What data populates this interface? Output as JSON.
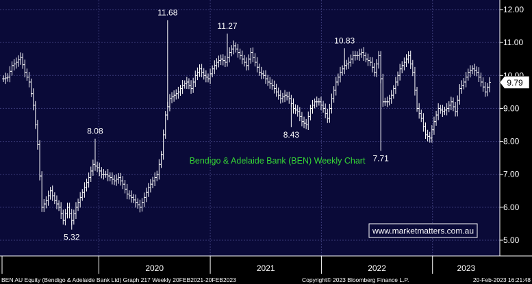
{
  "chart_data": {
    "type": "line",
    "title": "Bendigo & Adelaide Bank (BEN) Weekly Chart",
    "watermark": "www.marketmatters.com.au",
    "ylim": [
      4.7,
      12.3
    ],
    "y_ticks": [
      "5.00",
      "6.00",
      "7.00",
      "8.00",
      "9.00",
      "10.00",
      "11.00",
      "12.00"
    ],
    "x_ticks": [
      "2020",
      "2021",
      "2022",
      "2023"
    ],
    "last_price": "9.79",
    "annotations": [
      {
        "label": "11.68",
        "date": "2020-08-14",
        "value": 11.68
      },
      {
        "label": "11.27",
        "date": "2021-02-26",
        "value": 11.27
      },
      {
        "label": "8.08",
        "date": "2019-12-20",
        "value": 8.08
      },
      {
        "label": "10.83",
        "date": "2022-03-18",
        "value": 10.83
      },
      {
        "label": "5.32",
        "date": "2019-10-04",
        "value": 5.32
      },
      {
        "label": "8.43",
        "date": "2021-09-24",
        "value": 8.43
      },
      {
        "label": "7.71",
        "date": "2022-07-15",
        "value": 7.71
      }
    ],
    "series": [
      {
        "points": [
          [
            "2019-02-22",
            9.9
          ],
          [
            "2019-03-08",
            9.95
          ],
          [
            "2019-03-22",
            10.3
          ],
          [
            "2019-04-05",
            10.4
          ],
          [
            "2019-04-19",
            10.55
          ],
          [
            "2019-05-03",
            10.1
          ],
          [
            "2019-05-17",
            9.8
          ],
          [
            "2019-05-31",
            9.1
          ],
          [
            "2019-06-14",
            7.9
          ],
          [
            "2019-06-28",
            6.0
          ],
          [
            "2019-07-12",
            6.2
          ],
          [
            "2019-07-26",
            6.5
          ],
          [
            "2019-08-09",
            6.2
          ],
          [
            "2019-08-23",
            6.0
          ],
          [
            "2019-09-06",
            5.6
          ],
          [
            "2019-09-20",
            6.0
          ],
          [
            "2019-10-04",
            5.6
          ],
          [
            "2019-10-18",
            6.0
          ],
          [
            "2019-11-01",
            6.3
          ],
          [
            "2019-11-15",
            6.6
          ],
          [
            "2019-11-29",
            6.9
          ],
          [
            "2019-12-13",
            7.3
          ],
          [
            "2019-12-27",
            7.2
          ],
          [
            "2020-01-10",
            7.0
          ],
          [
            "2020-01-24",
            7.0
          ],
          [
            "2020-02-07",
            6.9
          ],
          [
            "2020-02-21",
            6.8
          ],
          [
            "2020-03-06",
            6.9
          ],
          [
            "2020-03-20",
            6.7
          ],
          [
            "2020-04-03",
            6.4
          ],
          [
            "2020-04-17",
            6.3
          ],
          [
            "2020-05-01",
            6.15
          ],
          [
            "2020-05-15",
            6.0
          ],
          [
            "2020-05-29",
            6.3
          ],
          [
            "2020-06-12",
            6.6
          ],
          [
            "2020-06-26",
            6.8
          ],
          [
            "2020-07-10",
            7.0
          ],
          [
            "2020-07-24",
            7.6
          ],
          [
            "2020-08-07",
            8.8
          ],
          [
            "2020-08-21",
            9.3
          ],
          [
            "2020-09-04",
            9.4
          ],
          [
            "2020-09-18",
            9.5
          ],
          [
            "2020-10-02",
            9.7
          ],
          [
            "2020-10-16",
            9.8
          ],
          [
            "2020-10-30",
            9.6
          ],
          [
            "2020-11-13",
            10.0
          ],
          [
            "2020-11-27",
            10.2
          ],
          [
            "2020-12-11",
            10.0
          ],
          [
            "2020-12-25",
            9.9
          ],
          [
            "2021-01-08",
            10.2
          ],
          [
            "2021-01-22",
            10.4
          ],
          [
            "2021-02-05",
            10.5
          ],
          [
            "2021-02-19",
            10.4
          ],
          [
            "2021-03-05",
            10.7
          ],
          [
            "2021-03-19",
            10.9
          ],
          [
            "2021-04-02",
            10.7
          ],
          [
            "2021-04-16",
            10.5
          ],
          [
            "2021-04-30",
            10.3
          ],
          [
            "2021-05-14",
            10.7
          ],
          [
            "2021-05-28",
            10.4
          ],
          [
            "2021-06-11",
            10.1
          ],
          [
            "2021-06-25",
            10.0
          ],
          [
            "2021-07-09",
            9.8
          ],
          [
            "2021-07-23",
            9.7
          ],
          [
            "2021-08-06",
            9.5
          ],
          [
            "2021-08-20",
            9.3
          ],
          [
            "2021-09-03",
            9.4
          ],
          [
            "2021-09-17",
            9.3
          ],
          [
            "2021-10-01",
            9.0
          ],
          [
            "2021-10-15",
            8.9
          ],
          [
            "2021-10-29",
            8.6
          ],
          [
            "2021-11-12",
            8.5
          ],
          [
            "2021-11-26",
            9.0
          ],
          [
            "2021-12-10",
            9.2
          ],
          [
            "2021-12-24",
            9.2
          ],
          [
            "2022-01-07",
            9.0
          ],
          [
            "2022-01-21",
            8.7
          ],
          [
            "2022-02-04",
            9.3
          ],
          [
            "2022-02-18",
            9.8
          ],
          [
            "2022-03-04",
            10.1
          ],
          [
            "2022-03-18",
            10.3
          ],
          [
            "2022-04-01",
            10.4
          ],
          [
            "2022-04-15",
            10.6
          ],
          [
            "2022-04-29",
            10.6
          ],
          [
            "2022-05-13",
            10.7
          ],
          [
            "2022-05-27",
            10.5
          ],
          [
            "2022-06-10",
            10.4
          ],
          [
            "2022-06-24",
            10.1
          ],
          [
            "2022-07-08",
            10.6
          ],
          [
            "2022-07-22",
            9.2
          ],
          [
            "2022-08-05",
            9.2
          ],
          [
            "2022-08-19",
            9.4
          ],
          [
            "2022-09-02",
            9.8
          ],
          [
            "2022-09-16",
            10.2
          ],
          [
            "2022-09-30",
            10.4
          ],
          [
            "2022-10-14",
            10.6
          ],
          [
            "2022-10-28",
            10.1
          ],
          [
            "2022-11-11",
            9.0
          ],
          [
            "2022-11-25",
            8.7
          ],
          [
            "2022-12-09",
            8.2
          ],
          [
            "2022-12-23",
            8.1
          ],
          [
            "2023-01-06",
            8.6
          ],
          [
            "2023-01-20",
            9.0
          ],
          [
            "2023-02-03",
            8.9
          ],
          [
            "2023-02-17",
            9.0
          ],
          [
            "2023-03-03",
            9.2
          ],
          [
            "2023-03-17",
            8.9
          ],
          [
            "2023-03-31",
            9.6
          ],
          [
            "2023-04-14",
            9.8
          ],
          [
            "2023-04-28",
            10.1
          ],
          [
            "2023-05-12",
            10.2
          ],
          [
            "2023-05-26",
            10.1
          ],
          [
            "2023-06-09",
            9.8
          ],
          [
            "2023-06-23",
            9.5
          ],
          [
            "2023-07-07",
            9.79
          ]
        ]
      }
    ]
  },
  "footer": {
    "left": "BEN AU Equity (Bendigo & Adelaide Bank Ltd) Graph 217  Weekly 20FEB2021-20FEB2023",
    "center": "Copyright© 2023 Bloomberg Finance L.P.",
    "right": "20-Feb-2023 16:21:48"
  },
  "colors": {
    "plot_bg": "#0a0a38",
    "grid": "#3b3b78",
    "price": "#ffffff",
    "title": "#35d435",
    "watermark_bg": "#0a0a38",
    "last_price_box": "#ffffff"
  }
}
